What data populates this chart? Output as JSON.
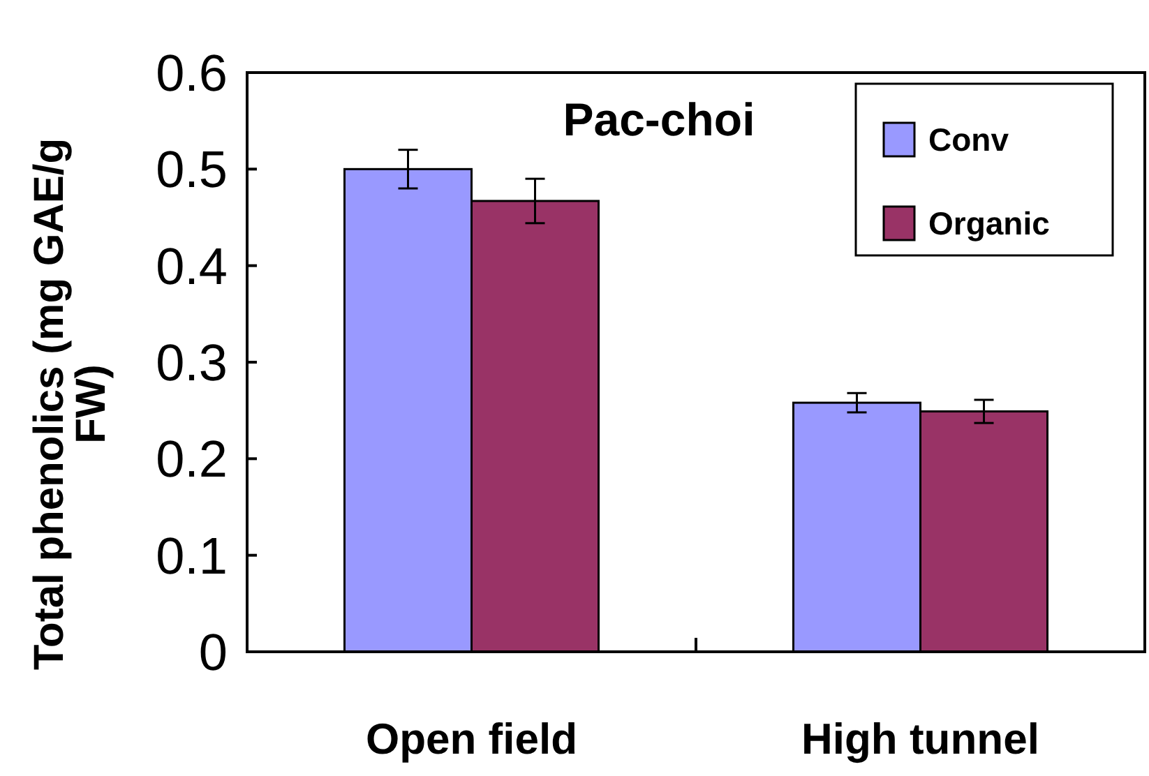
{
  "chart_data": {
    "type": "bar",
    "title": "Pac-choi",
    "ylabel": "Total phenolics (mg GAE/g FW)",
    "categories": [
      "Open field",
      "High tunnel"
    ],
    "series": [
      {
        "name": "Conv",
        "color": "#9999ff",
        "values": [
          0.5,
          0.258
        ],
        "errors": [
          0.02,
          0.01
        ]
      },
      {
        "name": "Organic",
        "color": "#993366",
        "values": [
          0.467,
          0.249
        ],
        "errors": [
          0.023,
          0.012
        ]
      }
    ],
    "ylim": [
      0,
      0.6
    ],
    "yticks": [
      {
        "value": 0,
        "label": "0"
      },
      0.1,
      0.2,
      0.3,
      0.4,
      0.5,
      0.6
    ],
    "grid": false,
    "legend": "top right"
  }
}
